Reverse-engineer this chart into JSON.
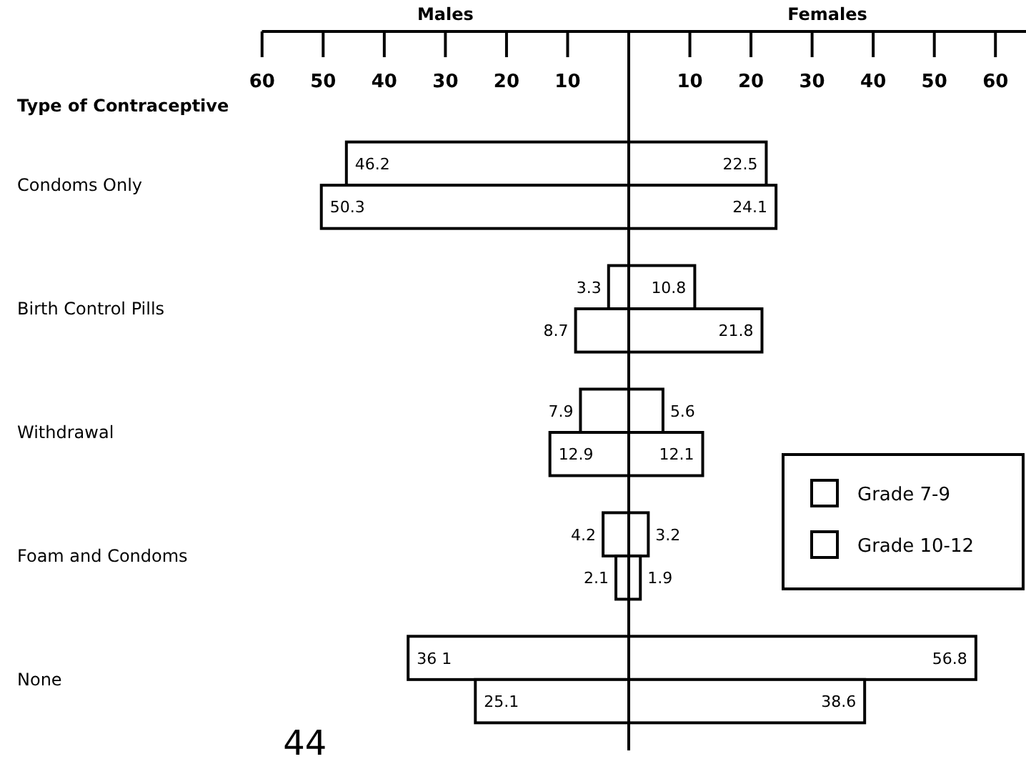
{
  "chart_data": [
    {
      "type": "bar",
      "orientation": "horizontal",
      "title": "Males",
      "ylabel": "Type of Contraceptive",
      "categories": [
        "Condoms Only",
        "Birth Control Pills",
        "Withdrawal",
        "Foam and Condoms",
        "None"
      ],
      "series": [
        {
          "color": "#ffffff",
          "values": [
            46.2,
            3.3,
            7.9,
            4.2,
            36.1
          ],
          "value_labels": [
            "46.2",
            "3.3",
            "7.9",
            "4.2",
            "36 1"
          ]
        },
        {
          "color": "#ffffff",
          "values": [
            50.3,
            8.7,
            12.9,
            2.1,
            25.1
          ],
          "value_labels": [
            "50.3",
            "8.7",
            "12.9",
            "2.1",
            "25.1"
          ]
        }
      ],
      "xlim": [
        60,
        0
      ],
      "xticks": [
        60,
        50,
        40,
        30,
        20,
        10
      ],
      "annotations": [
        "44"
      ]
    },
    {
      "type": "bar",
      "orientation": "horizontal",
      "title": "Females",
      "series": [
        {
          "name": "Grade 7-9",
          "color": "#ffffff",
          "values": [
            22.5,
            10.8,
            5.6,
            3.2,
            56.8
          ],
          "value_labels": [
            "22.5",
            "10.8",
            "5.6",
            "3.2",
            "56.8"
          ]
        },
        {
          "name": "Grade 10-12",
          "color": "#ffffff",
          "values": [
            24.1,
            21.8,
            12.1,
            1.9,
            38.6
          ],
          "value_labels": [
            "24.1",
            "21.8",
            "12.1",
            "1.9",
            "38.6"
          ]
        }
      ],
      "xlim": [
        0,
        65
      ],
      "xticks": [
        10,
        20,
        30,
        40,
        50,
        60
      ],
      "tick_labels": "x",
      "legend": "right"
    }
  ]
}
